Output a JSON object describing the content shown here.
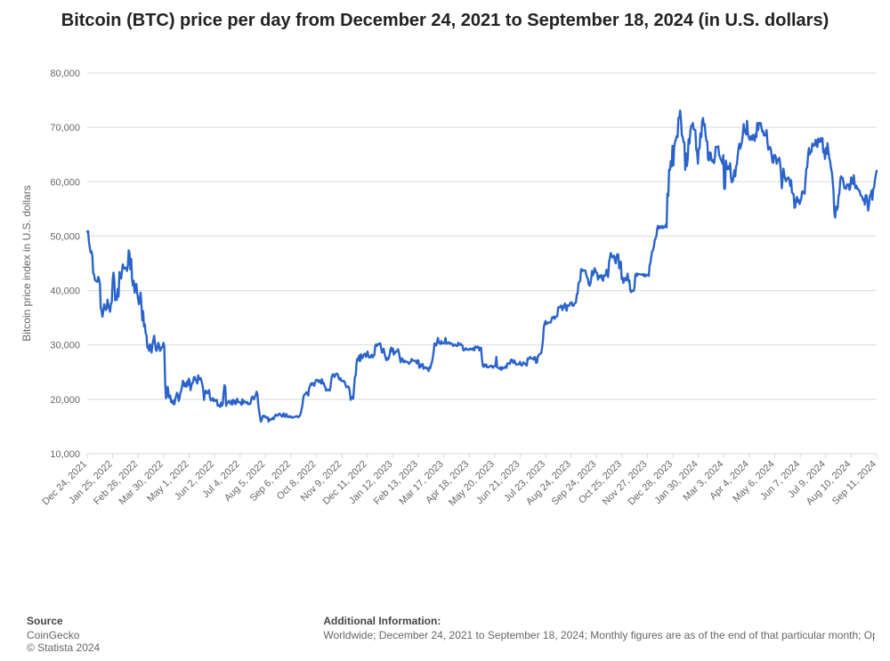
{
  "title": "Bitcoin (BTC) price per day from December 24, 2021 to September 18, 2024 (in U.S. dollars)",
  "chart": {
    "type": "line",
    "background_color": "#ffffff",
    "line_color": "#2a63c9",
    "line_width": 2.4,
    "grid_color": "#d9d9d9",
    "axis_label_color": "#666666",
    "axis_title_color": "#666666",
    "ylabel": "Bitcoin price index in U.S. dollars",
    "ylabel_fontsize": 12,
    "ylim": [
      10000,
      80000
    ],
    "ytick_step": 10000,
    "ytick_labels": [
      "10,000",
      "20,000",
      "30,000",
      "40,000",
      "50,000",
      "60,000",
      "70,000",
      "80,000"
    ],
    "xtick_rotation_deg": 45,
    "xtick_fontsize": 11,
    "ytick_fontsize": 11,
    "xlabels": [
      "Dec 24, 2021",
      "Jan 25, 2022",
      "Feb 26, 2022",
      "Mar 30, 2022",
      "May 1, 2022",
      "Jun 2, 2022",
      "Jul 4, 2022",
      "Aug 5, 2022",
      "Sep 6, 2022",
      "Oct 8, 2022",
      "Nov 9, 2022",
      "Dec 11, 2022",
      "Jan 12, 2023",
      "Feb 13, 2023",
      "Mar 17, 2023",
      "Apr 18, 2023",
      "May 20, 2023",
      "Jun 21, 2023",
      "Jul 23, 2023",
      "Aug 24, 2023",
      "Sep 24, 2023",
      "Oct 25, 2023",
      "Nov 27, 2023",
      "Dec 28, 2023",
      "Jan 30, 2024",
      "Mar 3, 2024",
      "Apr 4, 2024",
      "May 6, 2024",
      "Jun 7, 2024",
      "Jul 9, 2024",
      "Aug 10, 2024",
      "Sep 11, 2024"
    ],
    "series": [
      {
        "name": "BTC price",
        "values": [
          50800,
          50900,
          49000,
          47900,
          47000,
          47200,
          46500,
          43200,
          43000,
          42000,
          41800,
          41700,
          41600,
          42500,
          42100,
          41200,
          36800,
          36200,
          35200,
          36300,
          37500,
          37000,
          36400,
          36800,
          38300,
          37300,
          36600,
          36100,
          37500,
          37900,
          42000,
          43300,
          41800,
          38200,
          38400,
          38300,
          40300,
          38900,
          43400,
          42400,
          42200,
          43500,
          44800,
          44300,
          44000,
          44200,
          44200,
          43600,
          44600,
          47400,
          46800,
          43900,
          45800,
          42000,
          40900,
          41800,
          39600,
          40900,
          41200,
          39500,
          38500,
          37500,
          38400,
          39600,
          37500,
          34500,
          36200,
          33400,
          33800,
          32100,
          31800,
          29500,
          29700,
          28900,
          30100,
          29900,
          28600,
          30100,
          30800,
          31700,
          30400,
          29100,
          28900,
          29700,
          30400,
          29800,
          28900,
          29200,
          29600,
          29600,
          30400,
          29700,
          22900,
          20200,
          20500,
          22300,
          21000,
          20300,
          20700,
          19500,
          19400,
          19800,
          19100,
          19100,
          20100,
          20600,
          21200,
          20800,
          19700,
          20200,
          21200,
          21600,
          22400,
          23400,
          23100,
          22400,
          22900,
          22300,
          23300,
          22600,
          23800,
          23300,
          21700,
          22600,
          22900,
          23200,
          24100,
          24100,
          23600,
          23300,
          22900,
          24400,
          23600,
          23900,
          23900,
          23300,
          22700,
          21600,
          19900,
          21300,
          21600,
          21200,
          21100,
          21500,
          21700,
          20200,
          19800,
          19900,
          20200,
          19700,
          20000,
          19700,
          19700,
          19900,
          18800,
          19000,
          18800,
          18600,
          19400,
          18800,
          19100,
          21200,
          22600,
          22300,
          18800,
          19300,
          19400,
          19700,
          19400,
          19200,
          19700,
          19000,
          19900,
          19300,
          19800,
          19100,
          19300,
          20100,
          19500,
          19500,
          19500,
          19300,
          19000,
          20000,
          19200,
          19700,
          19600,
          19500,
          19300,
          19500,
          19100,
          19200,
          19100,
          19400,
          20200,
          20500,
          20200,
          20000,
          20500,
          20800,
          21400,
          20900,
          19000,
          17800,
          16700,
          15900,
          16200,
          16800,
          17000,
          16800,
          16900,
          16600,
          16600,
          16700,
          15900,
          16400,
          16200,
          16300,
          16400,
          16600,
          16300,
          16700,
          17100,
          17200,
          17000,
          17000,
          17200,
          17400,
          17200,
          17000,
          16800,
          17200,
          17400,
          16800,
          16800,
          17300,
          17000,
          16700,
          16800,
          16900,
          16700,
          16800,
          16600,
          16700,
          16700,
          16800,
          16800,
          16900,
          16900,
          16700,
          16800,
          17000,
          17400,
          18100,
          18800,
          20200,
          20800,
          20900,
          21100,
          21300,
          21000,
          20700,
          22000,
          22400,
          22900,
          22700,
          23000,
          22700,
          22500,
          23100,
          23500,
          23600,
          23500,
          23200,
          23500,
          23200,
          22900,
          23700,
          22900,
          23100,
          22500,
          22300,
          21600,
          21700,
          21800,
          21700,
          21600,
          22000,
          23400,
          24300,
          24600,
          24500,
          24100,
          24600,
          24700,
          24700,
          24500,
          23800,
          23600,
          23900,
          23400,
          23400,
          23300,
          23400,
          23200,
          22600,
          22200,
          22300,
          22400,
          22200,
          21400,
          19900,
          20400,
          20400,
          20100,
          22100,
          24100,
          24400,
          26700,
          27500,
          27200,
          28000,
          27000,
          28300,
          27500,
          27600,
          28100,
          28300,
          28400,
          27800,
          28000,
          28800,
          27900,
          27700,
          27700,
          28000,
          28200,
          27700,
          28000,
          28100,
          29800,
          30100,
          29800,
          30100,
          30100,
          30300,
          30300,
          29400,
          28600,
          28700,
          29300,
          28400,
          27800,
          27200,
          27600,
          27300,
          27600,
          28200,
          29200,
          29500,
          28800,
          29300,
          28200,
          28700,
          28600,
          28900,
          28900,
          29200,
          28600,
          27700,
          26800,
          27500,
          27500,
          27000,
          26800,
          27100,
          26900,
          26900,
          26900,
          26700,
          26500,
          26800,
          26900,
          27400,
          27200,
          27100,
          27100,
          27100,
          26900,
          26600,
          27200,
          27100,
          25800,
          25900,
          26400,
          26100,
          26500,
          25600,
          25900,
          25900,
          25700,
          25800,
          25600,
          25200,
          25900,
          25700,
          26400,
          26800,
          27700,
          28800,
          30300,
          30000,
          29900,
          30500,
          31300,
          30500,
          30300,
          30200,
          30700,
          30300,
          30300,
          30300,
          30500,
          31300,
          30200,
          30400,
          30400,
          30500,
          30200,
          30300,
          30300,
          30100,
          29800,
          30000,
          30100,
          29900,
          29800,
          29800,
          30400,
          30200,
          30000,
          30200,
          30000,
          29900,
          29000,
          29000,
          29200,
          29400,
          29200,
          29100,
          29200,
          29100,
          29300,
          29200,
          29300,
          29100,
          29400,
          29000,
          29700,
          29600,
          29500,
          29700,
          29600,
          29000,
          29400,
          29500,
          27500,
          26100,
          26000,
          26400,
          26100,
          26400,
          25900,
          25900,
          25900,
          26100,
          26100,
          26200,
          26000,
          25800,
          26100,
          26100,
          26100,
          27800,
          25900,
          25800,
          25700,
          25600,
          25900,
          25400,
          25900,
          25700,
          25800,
          25800,
          26100,
          25800,
          26600,
          26600,
          26600,
          26500,
          27200,
          27300,
          27000,
          26700,
          27200,
          26900,
          26400,
          26400,
          26400,
          26400,
          26600,
          26900,
          26300,
          26200,
          26400,
          26800,
          26600,
          26600,
          26300,
          26200,
          27500,
          27400,
          27600,
          27800,
          27500,
          27500,
          27500,
          27300,
          27800,
          27600,
          26700,
          26800,
          27900,
          28100,
          28300,
          28400,
          28500,
          29500,
          30800,
          33200,
          33900,
          34400,
          33800,
          34100,
          34000,
          34100,
          34100,
          34100,
          34500,
          35100,
          35000,
          35200,
          34800,
          35200,
          35200,
          35300,
          36900,
          36900,
          36900,
          37200,
          37200,
          36400,
          36900,
          37300,
          37600,
          36700,
          36300,
          37300,
          37200,
          37200,
          37600,
          37800,
          37800,
          37200,
          37200,
          37500,
          37700,
          37800,
          39300,
          39400,
          41300,
          41600,
          41800,
          43900,
          43900,
          43600,
          43700,
          43700,
          43700,
          43000,
          42400,
          42200,
          41200,
          40900,
          41200,
          42200,
          43600,
          42800,
          43200,
          44100,
          43700,
          43300,
          43200,
          42000,
          42700,
          42400,
          42800,
          42800,
          42100,
          41800,
          42800,
          42700,
          42800,
          43800,
          42900,
          42500,
          45200,
          45900,
          46900,
          46500,
          46100,
          46200,
          46400,
          45500,
          45000,
          46200,
          46700,
          46600,
          44100,
          44100,
          45300,
          42100,
          42400,
          41400,
          42000,
          42300,
          41900,
          42100,
          43100,
          41700,
          41900,
          40100,
          39700,
          40000,
          39900,
          39900,
          40400,
          42800,
          43100,
          42700,
          43100,
          43000,
          43000,
          43000,
          42900,
          42900,
          43000,
          42700,
          43000,
          42600,
          42800,
          42900,
          42800,
          42700,
          44600,
          45200,
          46300,
          47200,
          47400,
          48100,
          49300,
          49600,
          50100,
          51400,
          51900,
          51400,
          51800,
          51700,
          51500,
          51900,
          51500,
          51600,
          51700,
          52100,
          51600,
          57800,
          57400,
          62200,
          62200,
          63800,
          62800,
          66600,
          63000,
          66400,
          67300,
          67800,
          68400,
          68200,
          71700,
          71800,
          73100,
          71300,
          68600,
          68200,
          67300,
          67200,
          62200,
          65200,
          62900,
          64300,
          67800,
          67000,
          69200,
          70300,
          70400,
          70800,
          69600,
          69600,
          69500,
          65900,
          65600,
          63300,
          66100,
          66200,
          68900,
          68200,
          71100,
          71700,
          70400,
          70600,
          68600,
          67500,
          67400,
          64100,
          63900,
          65400,
          65300,
          64000,
          63700,
          64000,
          63400,
          64400,
          66400,
          66400,
          66400,
          66500,
          64900,
          64600,
          64100,
          63800,
          63300,
          64900,
          58700,
          58700,
          63900,
          62700,
          62300,
          62800,
          62300,
          63400,
          60800,
          59900,
          60100,
          60900,
          62100,
          61000,
          62800,
          63200,
          64800,
          66200,
          67000,
          66100,
          66700,
          67400,
          68700,
          70600,
          69100,
          69400,
          68700,
          71200,
          68900,
          68200,
          67700,
          67800,
          68400,
          67700,
          68600,
          68200,
          67500,
          68800,
          68200,
          70800,
          69500,
          70800,
          70800,
          70800,
          70000,
          69200,
          69300,
          68500,
          68600,
          68500,
          69500,
          67500,
          65900,
          66100,
          66400,
          66100,
          64900,
          63600,
          63500,
          64900,
          64900,
          64500,
          63300,
          63800,
          64200,
          64400,
          63500,
          61700,
          58800,
          60700,
          62400,
          61200,
          60600,
          60100,
          60600,
          60600,
          60800,
          60300,
          59200,
          60300,
          58100,
          57800,
          57700,
          55200,
          55400,
          56800,
          57200,
          56300,
          56700,
          55900,
          56400,
          56900,
          58200,
          58200,
          57900,
          57800,
          60500,
          62400,
          62700,
          64800,
          66200,
          65000,
          65500,
          65500,
          67000,
          66800,
          66600,
          66900,
          67700,
          66700,
          66400,
          67900,
          67500,
          67300,
          68000,
          67400,
          68000,
          65400,
          65800,
          64200,
          66200,
          65100,
          67100,
          65600,
          64400,
          63800,
          62600,
          61800,
          60400,
          58300,
          54400,
          53400,
          55400,
          54800,
          55200,
          57300,
          57900,
          60200,
          61000,
          60700,
          60700,
          59700,
          58800,
          58800,
          58700,
          59500,
          59400,
          59500,
          58500,
          59100,
          60800,
          60200,
          59600,
          61200,
          59500,
          58800,
          59300,
          58700,
          58700,
          58400,
          58300,
          57500,
          57400,
          57200,
          56600,
          56800,
          55800,
          57500,
          57500,
          56400,
          54700,
          55800,
          57400,
          57600,
          58400,
          56700,
          58700,
          58900,
          60300,
          61200,
          62000
        ]
      }
    ]
  },
  "footer": {
    "source_head": "Source",
    "source_lines": [
      "CoinGecko",
      "© Statista 2024"
    ],
    "addl_head": "Additional Information:",
    "addl_text": "Worldwide; December 24, 2021 to September 18, 2024; Monthly figures are as of the end of that particular month; Opening"
  }
}
